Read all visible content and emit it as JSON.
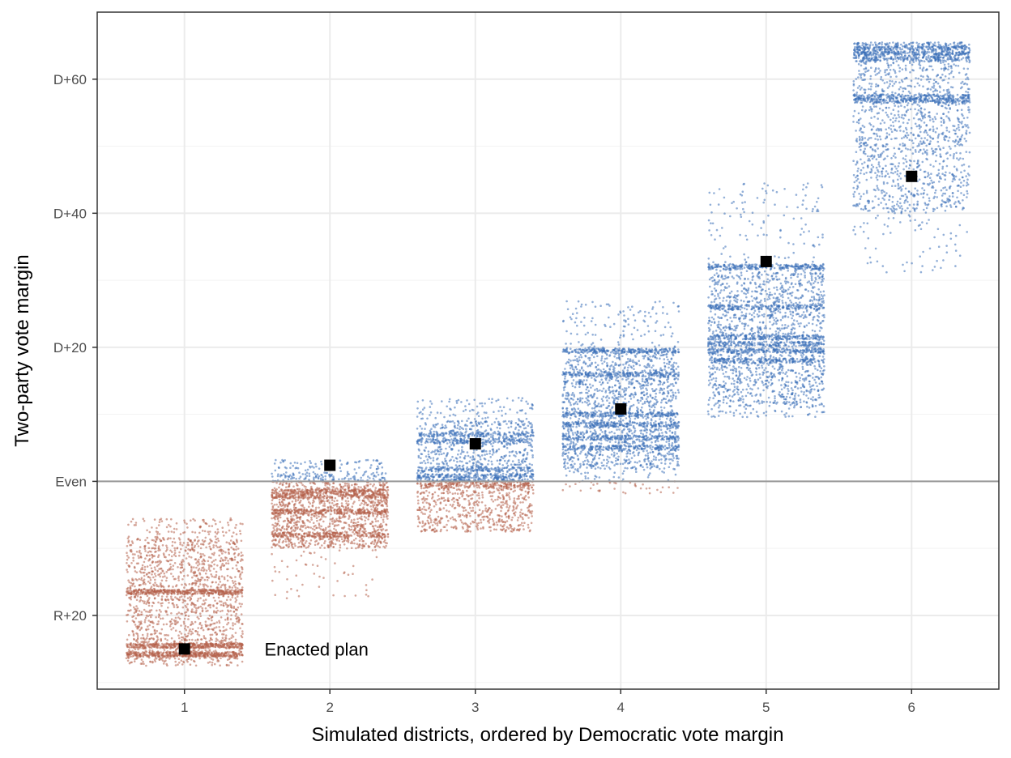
{
  "chart_data": {
    "type": "scatter",
    "title": "",
    "xlabel": "Simulated districts, ordered by Democratic vote margin",
    "ylabel": "Two-party vote margin",
    "xlim": [
      0.4,
      6.6
    ],
    "ylim": [
      -31,
      70
    ],
    "x_ticks": [
      {
        "value": 1,
        "label": "1"
      },
      {
        "value": 2,
        "label": "2"
      },
      {
        "value": 3,
        "label": "3"
      },
      {
        "value": 4,
        "label": "4"
      },
      {
        "value": 5,
        "label": "5"
      },
      {
        "value": 6,
        "label": "6"
      }
    ],
    "y_ticks": [
      {
        "value": -20,
        "label": "R+20"
      },
      {
        "value": 0,
        "label": "Even"
      },
      {
        "value": 20,
        "label": "D+20"
      },
      {
        "value": 40,
        "label": "D+40"
      },
      {
        "value": 60,
        "label": "D+60"
      }
    ],
    "y_minor_ticks": [
      -30,
      -10,
      10,
      30,
      50
    ],
    "grid": true,
    "reference_line": {
      "y": 0,
      "color": "#999999"
    },
    "colors": {
      "democratic": "#3a6fb8",
      "republican": "#b5604a",
      "enacted": "#000000"
    },
    "districts": [
      {
        "x": 1,
        "min": -26.5,
        "max": -8.5,
        "bands": [
          -16.5,
          -24.5,
          -25.8
        ],
        "sparse_max": -5.5,
        "sparse_min": -27.5,
        "n": 2600
      },
      {
        "x": 2,
        "min": -10,
        "max": 1.2,
        "bands": [
          -1.5,
          -2.2,
          -4.5,
          -8
        ],
        "sparse_max": 3.2,
        "sparse_min": -17.5,
        "n": 2200
      },
      {
        "x": 3,
        "min": -7,
        "max": 9,
        "bands": [
          -0.7,
          0,
          0.8,
          1.8,
          6,
          7
        ],
        "sparse_max": 12.5,
        "sparse_min": -7.5,
        "n": 2200
      },
      {
        "x": 4,
        "min": 1.8,
        "max": 19.8,
        "bands": [
          5,
          6.5,
          8.5,
          10,
          16,
          19.5
        ],
        "sparse_max": 27,
        "sparse_min": -1.8,
        "n": 2800
      },
      {
        "x": 5,
        "min": 11.5,
        "max": 32.5,
        "bands": [
          18,
          19.5,
          20.5,
          21.5,
          26,
          32
        ],
        "sparse_max": 44.5,
        "sparse_min": 9.5,
        "n": 2800
      },
      {
        "x": 6,
        "min": 40,
        "max": 65,
        "bands": [
          56.8,
          57.4,
          63,
          63.8,
          64.6
        ],
        "sparse_max": 65.5,
        "sparse_min": 31,
        "n": 2400
      }
    ],
    "enacted_plan": {
      "label": "Enacted plan",
      "points": [
        {
          "x": 1,
          "y": -25
        },
        {
          "x": 2,
          "y": 2.4
        },
        {
          "x": 3,
          "y": 5.6
        },
        {
          "x": 4,
          "y": 10.8
        },
        {
          "x": 5,
          "y": 32.8
        },
        {
          "x": 6,
          "y": 45.5
        }
      ]
    }
  }
}
